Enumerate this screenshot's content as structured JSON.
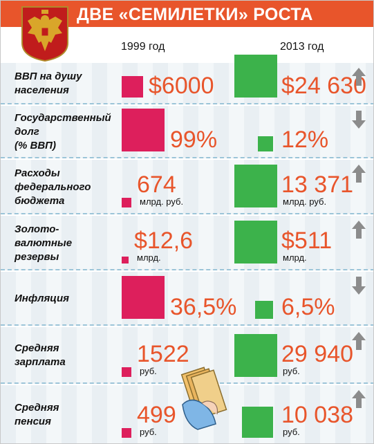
{
  "title": "ДВЕ «СЕМИЛЕТКИ» РОСТА",
  "years": [
    "1999 год",
    "2013 год"
  ],
  "colors": {
    "header": "#e8552b",
    "y1999": "#dd1f5c",
    "y2013": "#3cb24b",
    "value_text": "#e8552b",
    "arrow": "#8c8c8c"
  },
  "chart_data": {
    "type": "table",
    "title": "ДВЕ «СЕМИЛЕТКИ» РОСТА",
    "columns": [
      "1999 год",
      "2013 год"
    ],
    "rows": [
      {
        "label": "ВВП на душу\nнаселения",
        "v1999": "$6000",
        "u1999": "",
        "v2013": "$24 630",
        "u2013": "",
        "trend": "up",
        "size1999": 0.5,
        "size2013": 1.0
      },
      {
        "label": "Государственный\nдолг\n(% ВВП)",
        "v1999": "99%",
        "u1999": "",
        "v2013": "12%",
        "u2013": "",
        "trend": "down",
        "size1999": 1.0,
        "size2013": 0.35
      },
      {
        "label": "Расходы\nфедерального\nбюджета",
        "v1999": "674",
        "u1999": "млрд. руб.",
        "v2013": "13 371",
        "u2013": "млрд. руб.",
        "trend": "up",
        "size1999": 0.22,
        "size2013": 1.0
      },
      {
        "label": "Золото-\nвалютные\nрезервы",
        "v1999": "$12,6",
        "u1999": "млрд.",
        "v2013": "$511",
        "u2013": "млрд.",
        "trend": "up",
        "size1999": 0.16,
        "size2013": 1.0
      },
      {
        "label": "Инфляция",
        "v1999": "36,5%",
        "u1999": "",
        "v2013": "6,5%",
        "u2013": "",
        "trend": "down",
        "size1999": 1.0,
        "size2013": 0.42
      },
      {
        "label": "Средняя\nзарплата",
        "v1999": "1522",
        "u1999": "руб.",
        "v2013": "29 940",
        "u2013": "руб.",
        "trend": "up",
        "size1999": 0.22,
        "size2013": 1.0
      },
      {
        "label": "Средняя\nпенсия",
        "v1999": "499",
        "u1999": "руб.",
        "v2013": "10 038",
        "u2013": "руб.",
        "trend": "up",
        "size1999": 0.22,
        "size2013": 0.72
      }
    ]
  }
}
